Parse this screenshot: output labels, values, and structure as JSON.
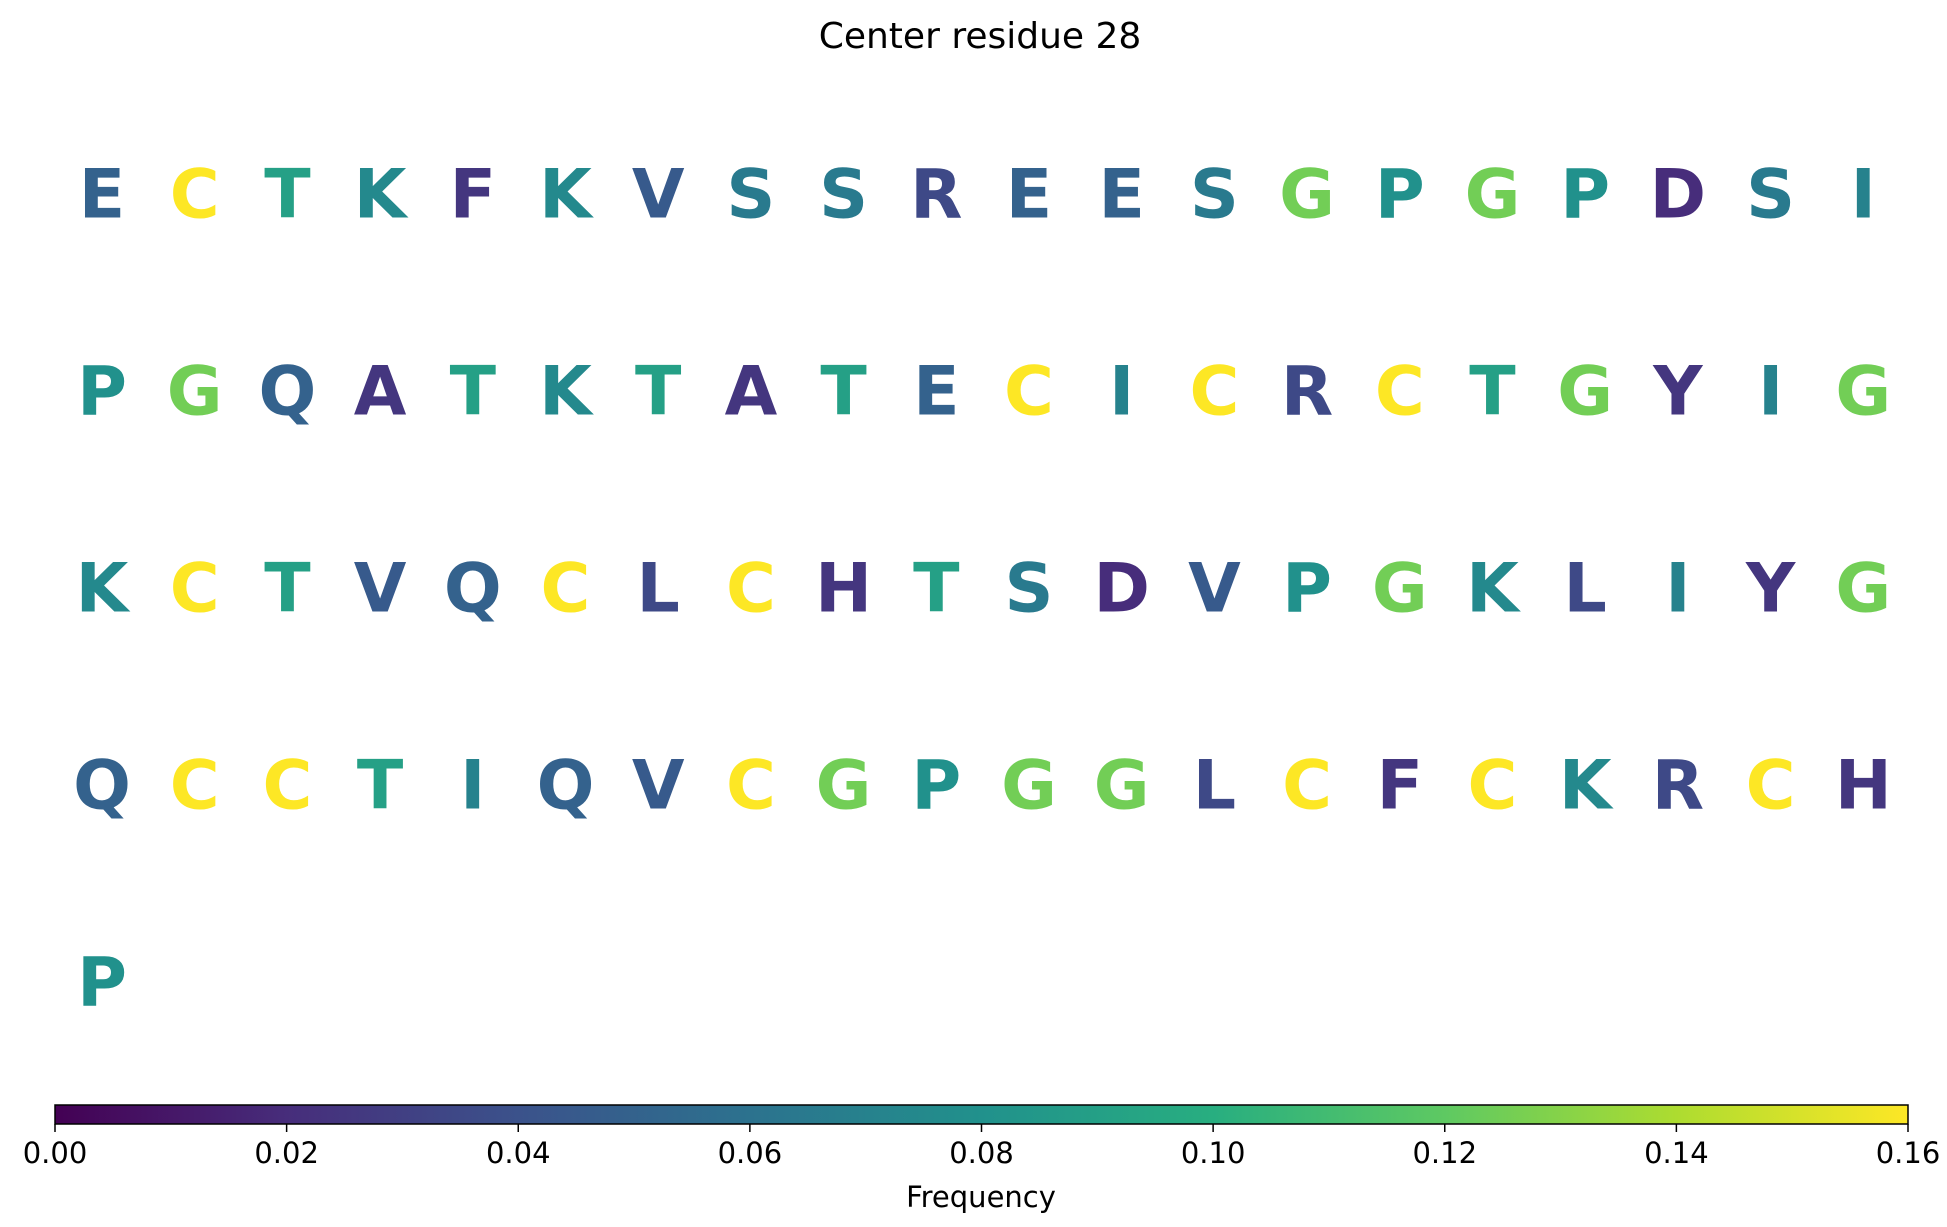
{
  "chart_data": {
    "type": "heatmap",
    "title": "Center residue 28",
    "columns_per_row": 20,
    "residues": [
      {
        "letter": "E",
        "frequency": 0.05
      },
      {
        "letter": "C",
        "frequency": 0.16
      },
      {
        "letter": "T",
        "frequency": 0.09
      },
      {
        "letter": "K",
        "frequency": 0.075
      },
      {
        "letter": "F",
        "frequency": 0.025
      },
      {
        "letter": "K",
        "frequency": 0.075
      },
      {
        "letter": "V",
        "frequency": 0.045
      },
      {
        "letter": "S",
        "frequency": 0.065
      },
      {
        "letter": "S",
        "frequency": 0.065
      },
      {
        "letter": "R",
        "frequency": 0.035
      },
      {
        "letter": "E",
        "frequency": 0.05
      },
      {
        "letter": "E",
        "frequency": 0.05
      },
      {
        "letter": "S",
        "frequency": 0.065
      },
      {
        "letter": "G",
        "frequency": 0.125
      },
      {
        "letter": "P",
        "frequency": 0.08
      },
      {
        "letter": "G",
        "frequency": 0.125
      },
      {
        "letter": "P",
        "frequency": 0.08
      },
      {
        "letter": "D",
        "frequency": 0.02
      },
      {
        "letter": "S",
        "frequency": 0.065
      },
      {
        "letter": "I",
        "frequency": 0.07
      },
      {
        "letter": "P",
        "frequency": 0.08
      },
      {
        "letter": "G",
        "frequency": 0.125
      },
      {
        "letter": "Q",
        "frequency": 0.05
      },
      {
        "letter": "A",
        "frequency": 0.025
      },
      {
        "letter": "T",
        "frequency": 0.09
      },
      {
        "letter": "K",
        "frequency": 0.075
      },
      {
        "letter": "T",
        "frequency": 0.09
      },
      {
        "letter": "A",
        "frequency": 0.025
      },
      {
        "letter": "T",
        "frequency": 0.09
      },
      {
        "letter": "E",
        "frequency": 0.05
      },
      {
        "letter": "C",
        "frequency": 0.16
      },
      {
        "letter": "I",
        "frequency": 0.07
      },
      {
        "letter": "C",
        "frequency": 0.16
      },
      {
        "letter": "R",
        "frequency": 0.035
      },
      {
        "letter": "C",
        "frequency": 0.16
      },
      {
        "letter": "T",
        "frequency": 0.09
      },
      {
        "letter": "G",
        "frequency": 0.125
      },
      {
        "letter": "Y",
        "frequency": 0.025
      },
      {
        "letter": "I",
        "frequency": 0.07
      },
      {
        "letter": "G",
        "frequency": 0.125
      },
      {
        "letter": "K",
        "frequency": 0.075
      },
      {
        "letter": "C",
        "frequency": 0.16
      },
      {
        "letter": "T",
        "frequency": 0.09
      },
      {
        "letter": "V",
        "frequency": 0.045
      },
      {
        "letter": "Q",
        "frequency": 0.05
      },
      {
        "letter": "C",
        "frequency": 0.16
      },
      {
        "letter": "L",
        "frequency": 0.035
      },
      {
        "letter": "C",
        "frequency": 0.16
      },
      {
        "letter": "H",
        "frequency": 0.025
      },
      {
        "letter": "T",
        "frequency": 0.09
      },
      {
        "letter": "S",
        "frequency": 0.065
      },
      {
        "letter": "D",
        "frequency": 0.02
      },
      {
        "letter": "V",
        "frequency": 0.045
      },
      {
        "letter": "P",
        "frequency": 0.08
      },
      {
        "letter": "G",
        "frequency": 0.125
      },
      {
        "letter": "K",
        "frequency": 0.075
      },
      {
        "letter": "L",
        "frequency": 0.035
      },
      {
        "letter": "I",
        "frequency": 0.07
      },
      {
        "letter": "Y",
        "frequency": 0.025
      },
      {
        "letter": "G",
        "frequency": 0.125
      },
      {
        "letter": "Q",
        "frequency": 0.05
      },
      {
        "letter": "C",
        "frequency": 0.16
      },
      {
        "letter": "C",
        "frequency": 0.16
      },
      {
        "letter": "T",
        "frequency": 0.09
      },
      {
        "letter": "I",
        "frequency": 0.07
      },
      {
        "letter": "Q",
        "frequency": 0.05
      },
      {
        "letter": "V",
        "frequency": 0.045
      },
      {
        "letter": "C",
        "frequency": 0.16
      },
      {
        "letter": "G",
        "frequency": 0.125
      },
      {
        "letter": "P",
        "frequency": 0.08
      },
      {
        "letter": "G",
        "frequency": 0.125
      },
      {
        "letter": "G",
        "frequency": 0.125
      },
      {
        "letter": "L",
        "frequency": 0.035
      },
      {
        "letter": "C",
        "frequency": 0.16
      },
      {
        "letter": "F",
        "frequency": 0.025
      },
      {
        "letter": "C",
        "frequency": 0.16
      },
      {
        "letter": "K",
        "frequency": 0.075
      },
      {
        "letter": "R",
        "frequency": 0.035
      },
      {
        "letter": "C",
        "frequency": 0.16
      },
      {
        "letter": "H",
        "frequency": 0.025
      },
      {
        "letter": "P",
        "frequency": 0.08
      }
    ],
    "colorbar": {
      "label": "Frequency",
      "colormap": "viridis",
      "range": [
        0.0,
        0.16
      ],
      "ticks": [
        0.0,
        0.02,
        0.04,
        0.06,
        0.08,
        0.1,
        0.12,
        0.14,
        0.16
      ],
      "tick_labels": [
        "0.00",
        "0.02",
        "0.04",
        "0.06",
        "0.08",
        "0.10",
        "0.12",
        "0.14",
        "0.16"
      ],
      "orientation": "horizontal"
    }
  }
}
